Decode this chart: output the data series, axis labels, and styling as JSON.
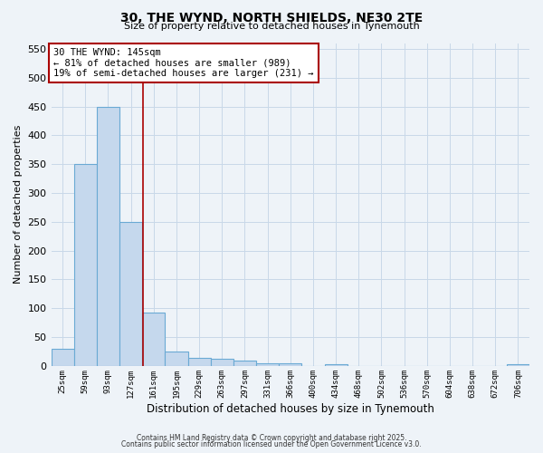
{
  "title_line1": "30, THE WYND, NORTH SHIELDS, NE30 2TE",
  "title_line2": "Size of property relative to detached houses in Tynemouth",
  "xlabel": "Distribution of detached houses by size in Tynemouth",
  "ylabel": "Number of detached properties",
  "categories": [
    "25sqm",
    "59sqm",
    "93sqm",
    "127sqm",
    "161sqm",
    "195sqm",
    "229sqm",
    "263sqm",
    "297sqm",
    "331sqm",
    "366sqm",
    "400sqm",
    "434sqm",
    "468sqm",
    "502sqm",
    "536sqm",
    "570sqm",
    "604sqm",
    "638sqm",
    "672sqm",
    "706sqm"
  ],
  "values": [
    30,
    350,
    450,
    250,
    93,
    25,
    14,
    12,
    10,
    5,
    4,
    0,
    3,
    0,
    0,
    0,
    0,
    0,
    0,
    0,
    3
  ],
  "bar_color": "#c5d8ed",
  "bar_edge_color": "#6aaad4",
  "bar_linewidth": 0.8,
  "grid_color": "#c8d8e8",
  "background_color": "#eef3f8",
  "red_line_x": 3.53,
  "red_line_color": "#aa0000",
  "annotation_text": "30 THE WYND: 145sqm\n← 81% of detached houses are smaller (989)\n19% of semi-detached houses are larger (231) →",
  "annotation_box_color": "#ffffff",
  "annotation_box_edge": "#aa0000",
  "ylim": [
    0,
    560
  ],
  "yticks": [
    0,
    50,
    100,
    150,
    200,
    250,
    300,
    350,
    400,
    450,
    500,
    550
  ],
  "footer_line1": "Contains HM Land Registry data © Crown copyright and database right 2025.",
  "footer_line2": "Contains public sector information licensed under the Open Government Licence v3.0."
}
